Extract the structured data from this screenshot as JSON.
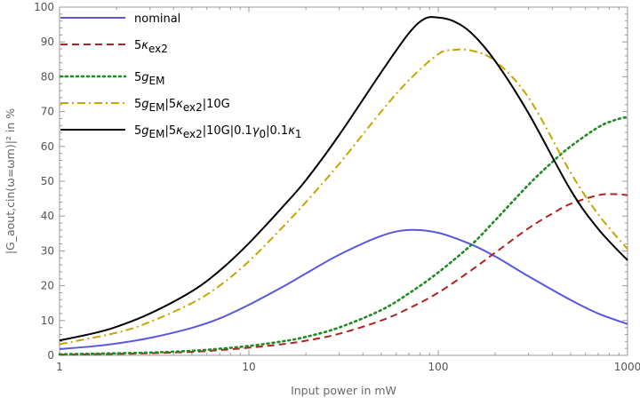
{
  "chart_data": {
    "type": "line",
    "title": "",
    "xlabel": "Input power in mW",
    "ylabel": "|G_aout,cin(ω=ωm)|² in %",
    "xscale": "log",
    "xlim": [
      1,
      1000
    ],
    "ylim": [
      0,
      100
    ],
    "x_ticks": [
      "1",
      "10",
      "100",
      "1000"
    ],
    "y_ticks": [
      "0",
      "10",
      "20",
      "30",
      "40",
      "50",
      "60",
      "70",
      "80",
      "90",
      "100"
    ],
    "grid": false,
    "legend_position": "top-left",
    "series": [
      {
        "name": "nominal",
        "color": "#5757e0",
        "dash": "solid",
        "x": [
          1,
          1.5,
          2,
          3,
          5,
          7,
          10,
          15,
          20,
          30,
          50,
          70,
          100,
          150,
          200,
          300,
          500,
          700,
          1000
        ],
        "y": [
          1.8,
          2.6,
          3.4,
          5.0,
          7.9,
          10.6,
          14.5,
          19.6,
          23.5,
          28.9,
          34.3,
          36.0,
          35.2,
          31.8,
          28.4,
          22.7,
          15.9,
          12.0,
          9.0
        ]
      },
      {
        "name": "5κex2",
        "color": "#b22222",
        "dash": "dashed",
        "x": [
          1,
          2,
          3,
          5,
          7,
          10,
          15,
          20,
          30,
          50,
          70,
          100,
          150,
          200,
          300,
          400,
          500,
          700,
          850,
          1000
        ],
        "y": [
          0.2,
          0.4,
          0.6,
          1.0,
          1.5,
          2.2,
          3.2,
          4.2,
          6.2,
          10.0,
          13.5,
          18.0,
          24.5,
          29.5,
          36.5,
          40.7,
          43.5,
          46.0,
          46.3,
          46.0
        ]
      },
      {
        "name": "5gEM",
        "color": "#228b22",
        "dash": "dotted",
        "x": [
          1,
          2,
          3,
          5,
          7,
          10,
          15,
          20,
          30,
          50,
          70,
          100,
          150,
          200,
          300,
          400,
          500,
          700,
          850,
          1000
        ],
        "y": [
          0.3,
          0.6,
          0.8,
          1.3,
          1.9,
          2.7,
          4.0,
          5.3,
          8.0,
          13.0,
          17.8,
          23.8,
          31.8,
          38.8,
          49.0,
          55.5,
          60.0,
          65.5,
          67.5,
          68.5
        ]
      },
      {
        "name": "5gEM|5κex2|10G",
        "color": "#c8a500",
        "dash": "dashdot",
        "x": [
          1,
          2,
          3,
          5,
          7,
          10,
          15,
          20,
          30,
          50,
          70,
          100,
          120,
          150,
          200,
          300,
          500,
          700,
          1000
        ],
        "y": [
          3.2,
          6.5,
          9.6,
          15.0,
          20.0,
          27.0,
          36.7,
          44.0,
          55.0,
          70.0,
          79.0,
          86.5,
          87.7,
          87.5,
          84.5,
          74.0,
          52.5,
          40.5,
          30.5
        ]
      },
      {
        "name": "5gEM|5κex2|10G|0.1γ0|0.1κ1",
        "color": "#000000",
        "dash": "solid",
        "x": [
          1,
          1.5,
          2,
          3,
          5,
          7,
          10,
          15,
          20,
          30,
          50,
          70,
          85,
          100,
          120,
          150,
          200,
          300,
          500,
          700,
          1000
        ],
        "y": [
          4.3,
          6.3,
          8.2,
          12.0,
          18.4,
          24.3,
          32.2,
          42.5,
          50.3,
          63.3,
          81.3,
          92.5,
          96.7,
          97.0,
          96.0,
          92.5,
          84.5,
          69.5,
          47.5,
          36.3,
          27.3
        ]
      }
    ]
  },
  "legend": [
    {
      "base": "nominal",
      "sub": "",
      "rest": []
    },
    {
      "base": "5",
      "sym": "κ",
      "sub": "ex2",
      "rest": []
    },
    {
      "base": "5",
      "sym": "g",
      "sub": "EM",
      "rest": []
    },
    {
      "base": "5",
      "sym": "g",
      "sub": "EM",
      "rest": [
        {
          "text": "|5",
          "sym": "κ",
          "sub": "ex2"
        },
        {
          "text": "|10G",
          "sym": "",
          "sub": ""
        }
      ]
    },
    {
      "base": "5",
      "sym": "g",
      "sub": "EM",
      "rest": [
        {
          "text": "|5",
          "sym": "κ",
          "sub": "ex2"
        },
        {
          "text": "|10G|0.1",
          "sym": "γ",
          "sub": "0"
        },
        {
          "text": "|0.1",
          "sym": "κ",
          "sub": "1"
        }
      ]
    }
  ]
}
